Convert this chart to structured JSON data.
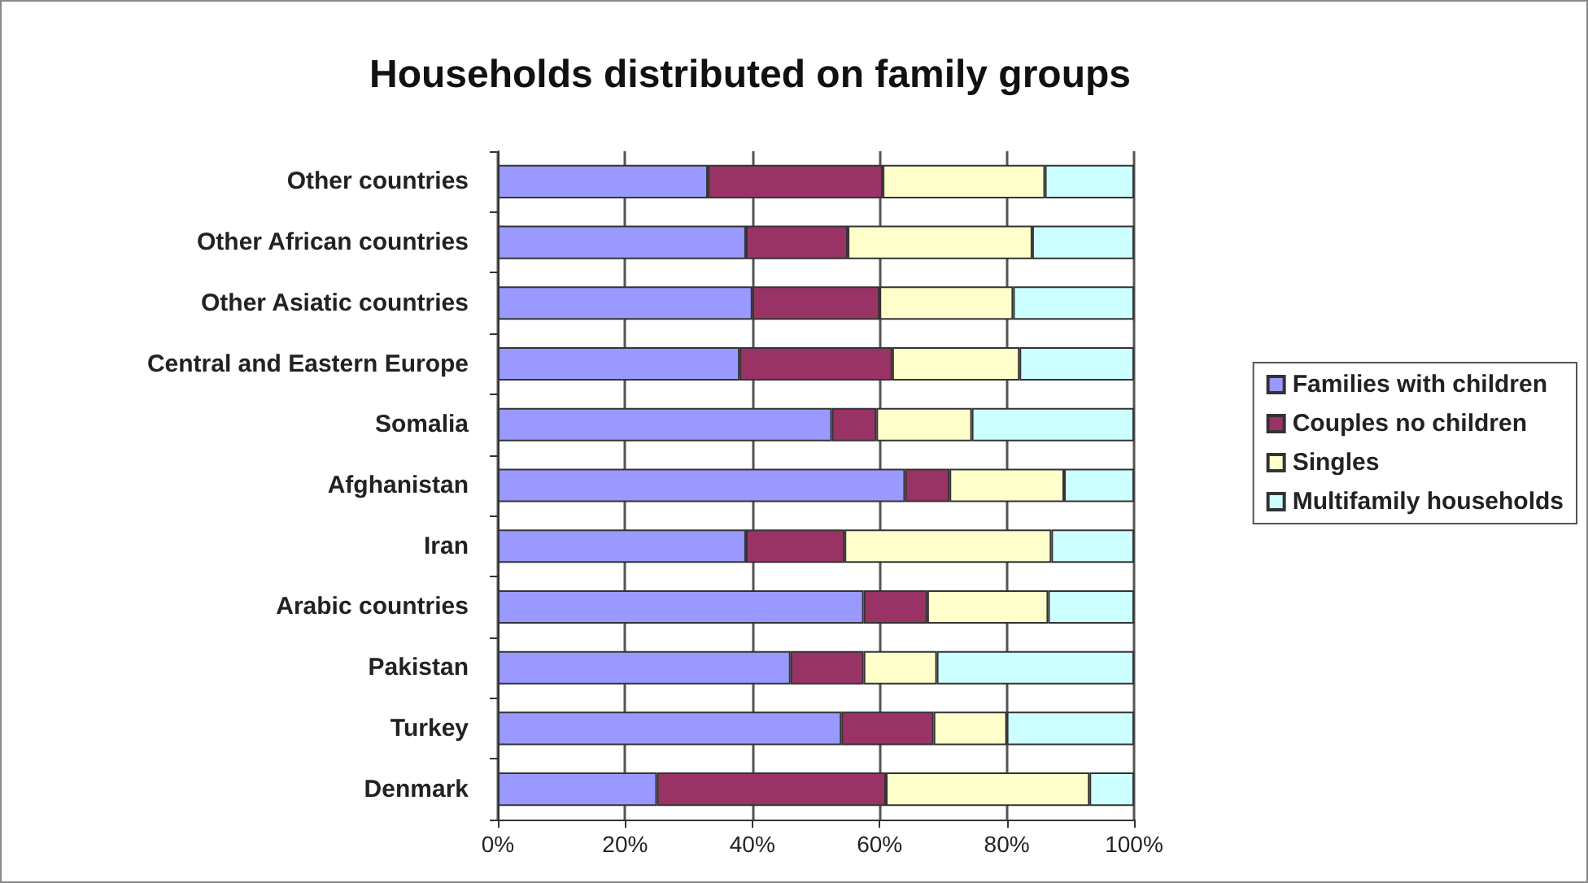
{
  "chart_data": {
    "type": "bar",
    "orientation": "horizontal",
    "stacked": true,
    "title": "Households distributed on family groups",
    "categories": [
      "Other countries",
      "Other African countries",
      "Other Asiatic countries",
      "Central and Eastern Europe",
      "Somalia",
      "Afghanistan",
      "Iran",
      "Arabic countries",
      "Pakistan",
      "Turkey",
      "Denmark"
    ],
    "series": [
      {
        "name": "Families with children",
        "color": "#9999ff",
        "values": [
          33,
          39,
          40,
          38,
          52.5,
          64,
          39,
          57.5,
          46,
          54,
          25
        ]
      },
      {
        "name": "Couples no children",
        "color": "#993366",
        "values": [
          27.5,
          16,
          20,
          24,
          7,
          7,
          15.5,
          10,
          11.5,
          14.5,
          36
        ]
      },
      {
        "name": "Singles",
        "color": "#ffffcc",
        "values": [
          25.5,
          29,
          21,
          20,
          15,
          18,
          32.5,
          19,
          11.5,
          11.5,
          32
        ]
      },
      {
        "name": "Multifamily households",
        "color": "#ccffff",
        "values": [
          14,
          16,
          19,
          18,
          25.5,
          11,
          13,
          13.5,
          31,
          20,
          7
        ]
      }
    ],
    "xlim": [
      0,
      100
    ],
    "xticks": [
      {
        "value": 0,
        "label": "0%"
      },
      {
        "value": 20,
        "label": "20%"
      },
      {
        "value": 40,
        "label": "40%"
      },
      {
        "value": 60,
        "label": "60%"
      },
      {
        "value": 80,
        "label": "80%"
      },
      {
        "value": 100,
        "label": "100%"
      }
    ],
    "grid": "x",
    "legend": "right"
  }
}
